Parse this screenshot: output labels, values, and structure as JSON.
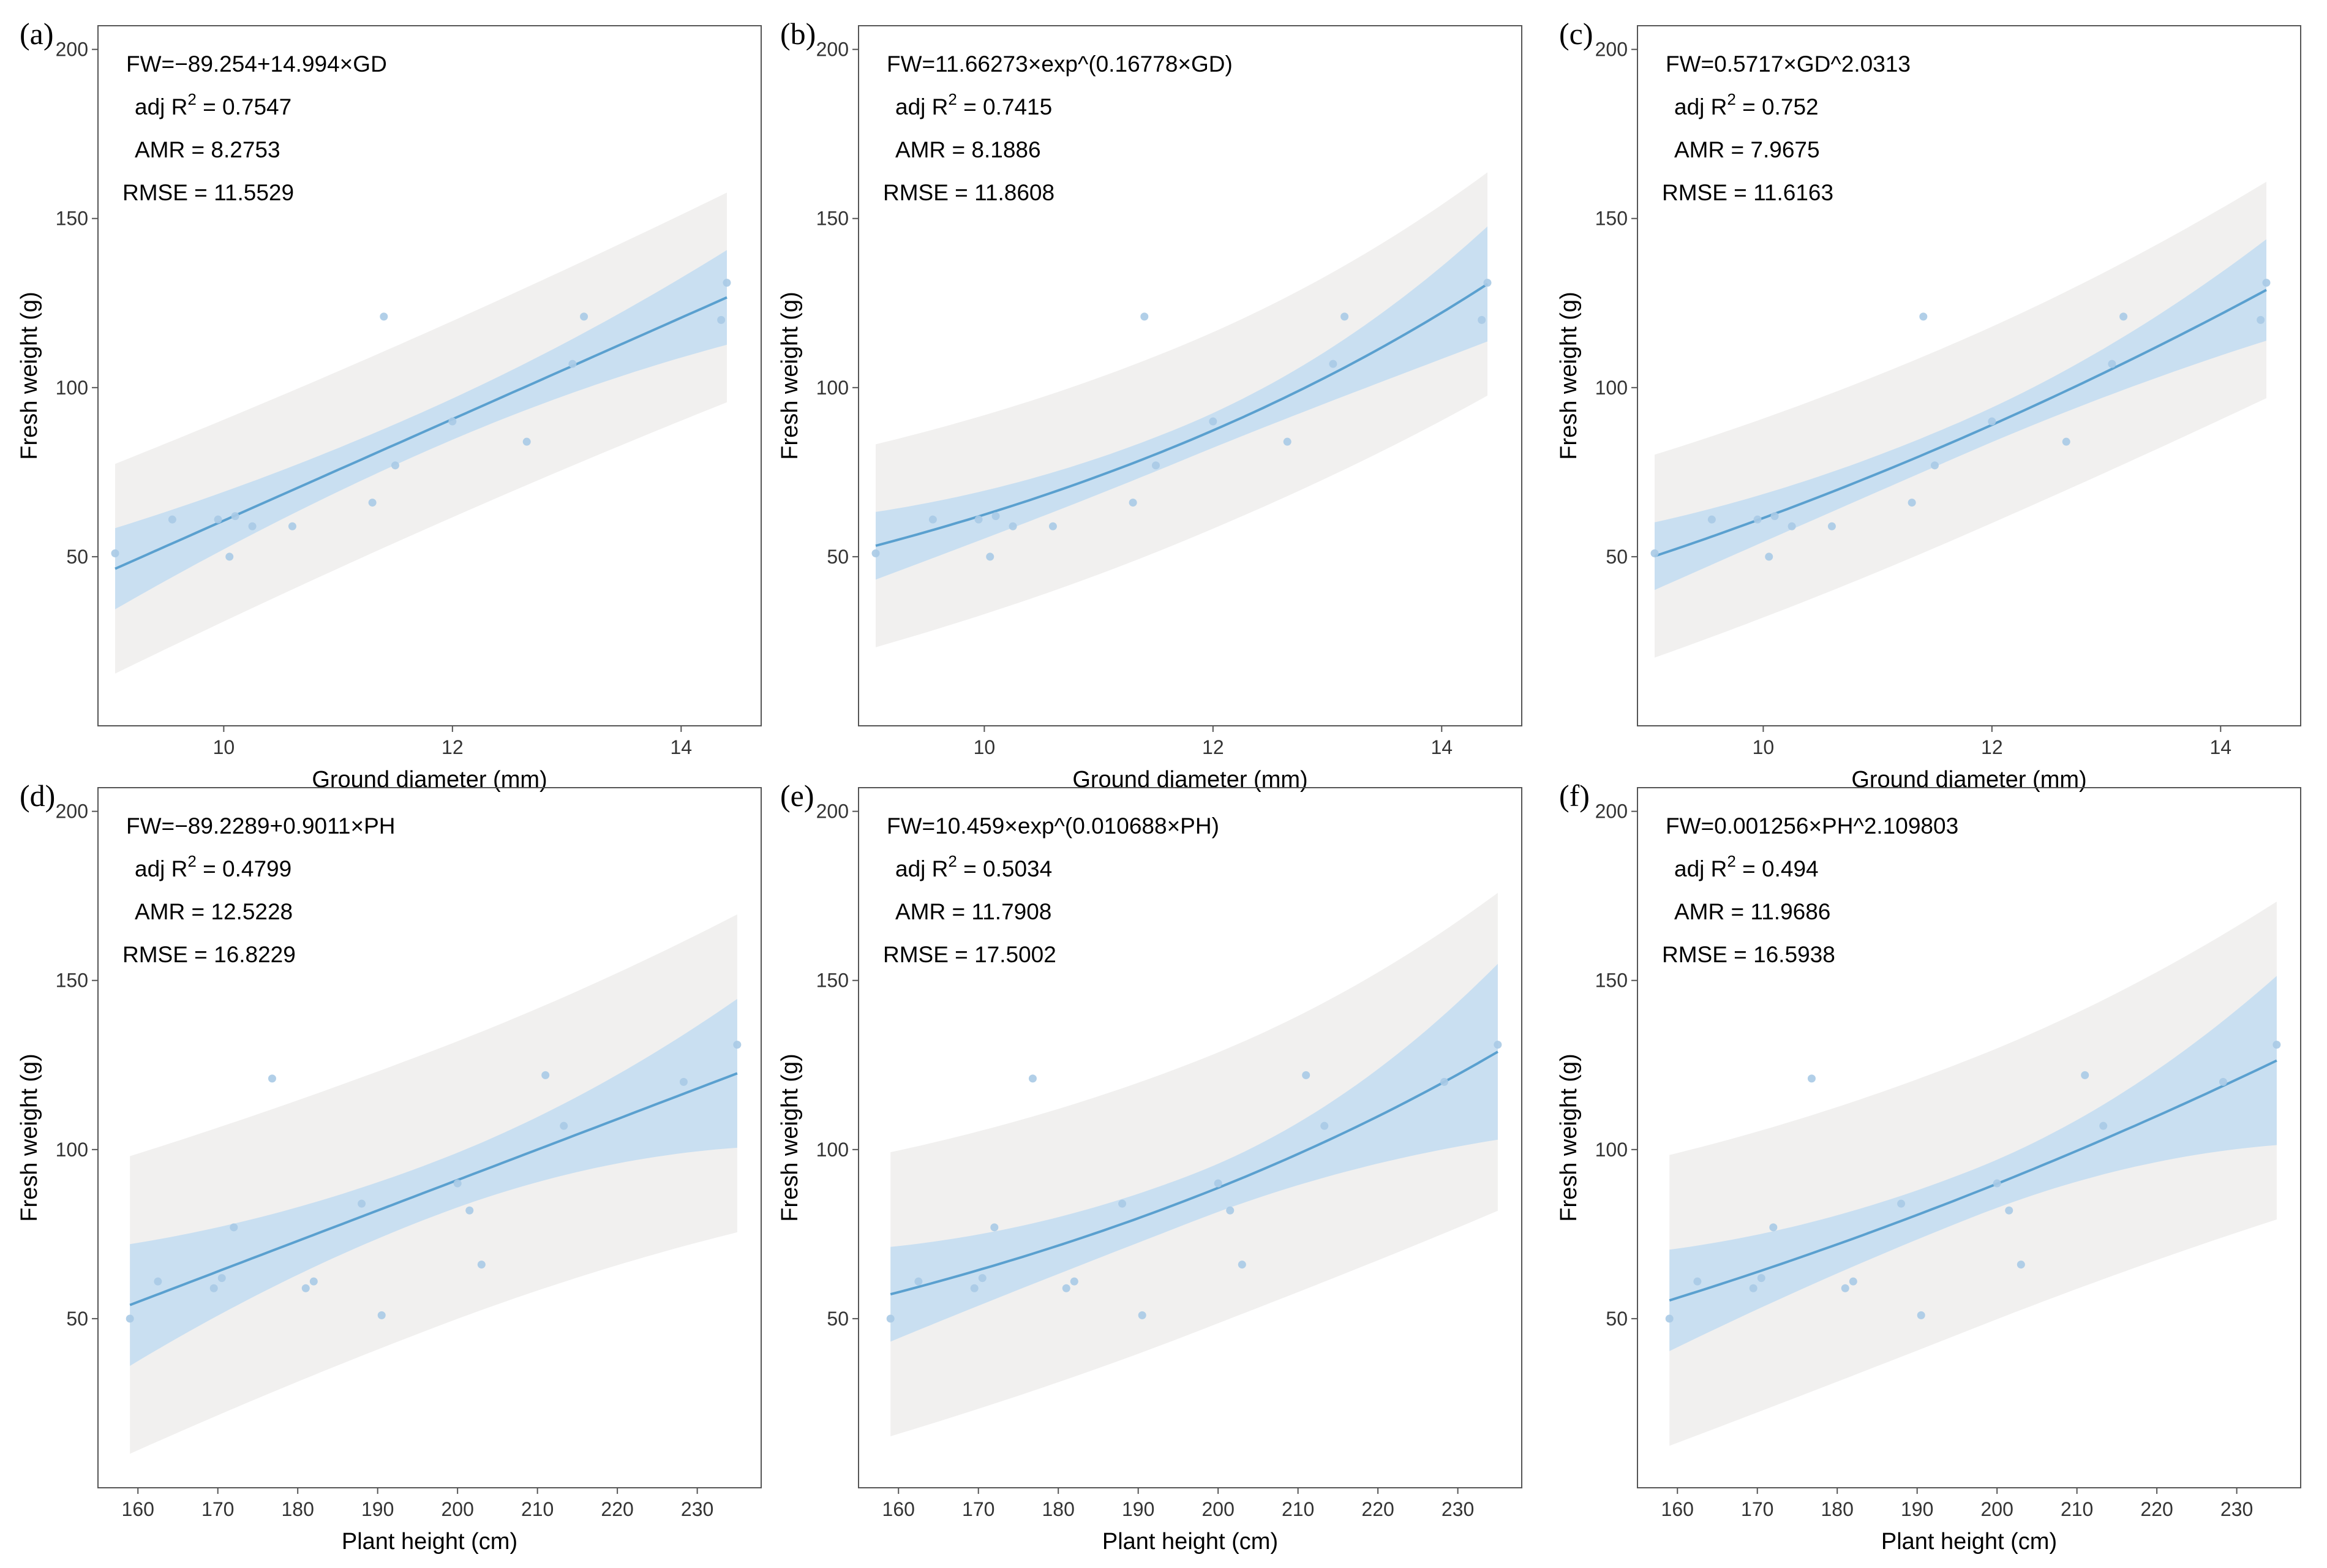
{
  "chart_data": [
    {
      "panel": "(a)",
      "type": "scatter",
      "xlabel": "Ground diameter (mm)",
      "ylabel": "Fresh weight (g)",
      "xlim": [
        8.9,
        14.7
      ],
      "ylim": [
        0,
        207
      ],
      "xticks": [
        10,
        12,
        14
      ],
      "yticks": [
        50,
        100,
        150,
        200
      ],
      "annotations": [
        "FW=−89.254+14.994×GD",
        "adj R2 = 0.7547",
        "AMR = 8.2753",
        "RMSE = 11.5529"
      ],
      "model": {
        "kind": "linear",
        "a": -89.254,
        "b": 14.994
      },
      "ci_half": [
        12,
        6,
        14
      ],
      "pi_half": [
        31,
        29,
        31
      ],
      "points": {
        "x": [
          9.05,
          9.55,
          9.95,
          10.05,
          10.1,
          10.25,
          10.6,
          11.3,
          11.4,
          11.5,
          12.0,
          12.65,
          13.05,
          13.15,
          14.35,
          14.4
        ],
        "y": [
          51,
          61,
          61,
          50,
          62,
          59,
          59,
          66,
          121,
          77,
          90,
          84,
          107,
          121,
          120,
          131
        ]
      }
    },
    {
      "panel": "(b)",
      "type": "scatter",
      "xlabel": "Ground diameter (mm)",
      "ylabel": "Fresh weight (g)",
      "xlim": [
        8.9,
        14.7
      ],
      "ylim": [
        0,
        207
      ],
      "xticks": [
        10,
        12,
        14
      ],
      "yticks": [
        50,
        100,
        150,
        200
      ],
      "annotations": [
        "FW=11.66273×exp^(0.16778×GD)",
        "adj R2 = 0.7415",
        "AMR = 8.1886",
        "RMSE = 11.8608"
      ],
      "model": {
        "kind": "exp",
        "a": 11.66273,
        "b": 0.16778
      },
      "ci_half": [
        10,
        5,
        17
      ],
      "pi_half": [
        30,
        29,
        33
      ],
      "points": {
        "x": [
          9.05,
          9.55,
          9.95,
          10.05,
          10.1,
          10.25,
          10.6,
          11.3,
          11.4,
          11.5,
          12.0,
          12.65,
          13.05,
          13.15,
          14.35,
          14.4
        ],
        "y": [
          51,
          61,
          61,
          50,
          62,
          59,
          59,
          66,
          121,
          77,
          90,
          84,
          107,
          121,
          120,
          131
        ]
      }
    },
    {
      "panel": "(c)",
      "type": "scatter",
      "xlabel": "Ground diameter (mm)",
      "ylabel": "Fresh weight (g)",
      "xlim": [
        8.9,
        14.7
      ],
      "ylim": [
        0,
        207
      ],
      "xticks": [
        10,
        12,
        14
      ],
      "yticks": [
        50,
        100,
        150,
        200
      ],
      "annotations": [
        "FW=0.5717×GD^2.0313",
        "adj R2 = 0.752",
        "AMR = 7.9675",
        "RMSE = 11.6163"
      ],
      "model": {
        "kind": "power",
        "a": 0.5717,
        "b": 2.0313
      },
      "ci_half": [
        10,
        5,
        15
      ],
      "pi_half": [
        30,
        29,
        32
      ],
      "points": {
        "x": [
          9.05,
          9.55,
          9.95,
          10.05,
          10.1,
          10.25,
          10.6,
          11.3,
          11.4,
          11.5,
          12.0,
          12.65,
          13.05,
          13.15,
          14.35,
          14.4
        ],
        "y": [
          51,
          61,
          61,
          50,
          62,
          59,
          59,
          66,
          121,
          77,
          90,
          84,
          107,
          121,
          120,
          131
        ]
      }
    },
    {
      "panel": "(d)",
      "type": "scatter",
      "xlabel": "Plant height (cm)",
      "ylabel": "Fresh weight (g)",
      "xlim": [
        155,
        238
      ],
      "ylim": [
        0,
        207
      ],
      "xticks": [
        160,
        170,
        180,
        190,
        200,
        210,
        220,
        230
      ],
      "yticks": [
        50,
        100,
        150,
        200
      ],
      "annotations": [
        "FW=−89.2289+0.9011×PH",
        "adj R2 = 0.4799",
        "AMR = 12.5228",
        "RMSE = 16.8229"
      ],
      "model": {
        "kind": "linear",
        "a": -89.2289,
        "b": 0.9011
      },
      "ci_half": [
        18,
        8,
        22
      ],
      "pi_half": [
        44,
        41,
        47
      ],
      "points": {
        "x": [
          159,
          162.5,
          169.5,
          170.5,
          172,
          176.8,
          181,
          182,
          188,
          190.5,
          200,
          201.5,
          203,
          211,
          213.3,
          228.3,
          235
        ],
        "y": [
          50,
          61,
          59,
          62,
          77,
          121,
          59,
          61,
          84,
          51,
          90,
          82,
          66,
          122,
          107,
          120,
          131
        ]
      }
    },
    {
      "panel": "(e)",
      "type": "scatter",
      "xlabel": "Plant height (cm)",
      "ylabel": "Fresh weight (g)",
      "xlim": [
        155,
        238
      ],
      "ylim": [
        0,
        207
      ],
      "xticks": [
        160,
        170,
        180,
        190,
        200,
        210,
        220,
        230
      ],
      "yticks": [
        50,
        100,
        150,
        200
      ],
      "annotations": [
        "FW=10.459×exp^(0.010688×PH)",
        "adj R2 = 0.5034",
        "AMR = 11.7908",
        "RMSE = 17.5002"
      ],
      "model": {
        "kind": "exp",
        "a": 10.459,
        "b": 0.010688
      },
      "ci_half": [
        14,
        7,
        26
      ],
      "pi_half": [
        42,
        40,
        47
      ],
      "points": {
        "x": [
          159,
          162.5,
          169.5,
          170.5,
          172,
          176.8,
          181,
          182,
          188,
          190.5,
          200,
          201.5,
          203,
          211,
          213.3,
          228.3,
          235
        ],
        "y": [
          50,
          61,
          59,
          62,
          77,
          121,
          59,
          61,
          84,
          51,
          90,
          82,
          66,
          122,
          107,
          120,
          131
        ]
      }
    },
    {
      "panel": "(f)",
      "type": "scatter",
      "xlabel": "Plant height (cm)",
      "ylabel": "Fresh weight (g)",
      "xlim": [
        155,
        238
      ],
      "ylim": [
        0,
        207
      ],
      "xticks": [
        160,
        170,
        180,
        190,
        200,
        210,
        220,
        230
      ],
      "yticks": [
        50,
        100,
        150,
        200
      ],
      "annotations": [
        "FW=0.001256×PH^2.109803",
        "adj R2 = 0.494",
        "AMR = 11.9686",
        "RMSE = 16.5938"
      ],
      "model": {
        "kind": "power",
        "a": 0.001256,
        "b": 2.109803
      },
      "ci_half": [
        15,
        7,
        25
      ],
      "pi_half": [
        43,
        40,
        47
      ],
      "points": {
        "x": [
          159,
          162.5,
          169.5,
          170.5,
          172,
          176.8,
          181,
          182,
          188,
          190.5,
          200,
          201.5,
          203,
          211,
          213.3,
          228.3,
          235
        ],
        "y": [
          50,
          61,
          59,
          62,
          77,
          121,
          59,
          61,
          84,
          51,
          90,
          82,
          66,
          122,
          107,
          120,
          131
        ]
      }
    }
  ],
  "colors": {
    "fit_line": "#5aa0cf",
    "confidence_band": "#c9dff1",
    "prediction_band": "#f1f0ef",
    "points": "#a9cae6",
    "axes": "#555555"
  }
}
